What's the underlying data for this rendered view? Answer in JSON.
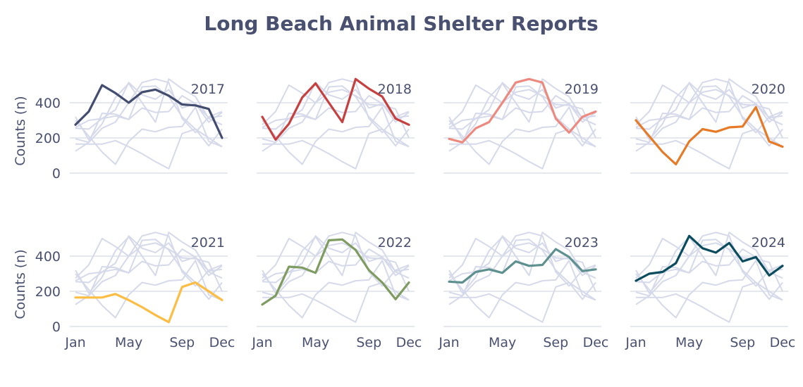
{
  "chart_data": {
    "type": "line",
    "title": "Long Beach Animal Shelter Reports",
    "ylabel": "Counts (n)",
    "xlabel": "",
    "ylim": [
      0,
      560
    ],
    "yticks": [
      0,
      200,
      400
    ],
    "x": [
      "Jan",
      "Feb",
      "Mar",
      "Apr",
      "May",
      "Jun",
      "Jul",
      "Aug",
      "Sep",
      "Oct",
      "Nov",
      "Dec"
    ],
    "xtick_labels": [
      "Jan",
      "May",
      "Sep",
      "Dec"
    ],
    "xtick_index": [
      0,
      4,
      8,
      11
    ],
    "background_color": "#d5d9ea",
    "grid": true,
    "legend": "none",
    "layout": {
      "rows": 2,
      "cols": 4
    },
    "series": [
      {
        "name": "2017",
        "color": "#434d70",
        "values": [
          275,
          350,
          500,
          455,
          400,
          460,
          475,
          440,
          390,
          385,
          365,
          200
        ]
      },
      {
        "name": "2018",
        "color": "#c64040",
        "values": [
          320,
          190,
          280,
          430,
          510,
          400,
          290,
          535,
          480,
          435,
          310,
          275
        ]
      },
      {
        "name": "2019",
        "color": "#ec8a80",
        "values": [
          195,
          175,
          255,
          290,
          400,
          515,
          535,
          515,
          310,
          230,
          320,
          350
        ]
      },
      {
        "name": "2020",
        "color": "#e67a26",
        "values": [
          300,
          210,
          120,
          50,
          180,
          250,
          235,
          260,
          265,
          375,
          180,
          150
        ]
      },
      {
        "name": "2021",
        "color": "#fdbd45",
        "values": [
          165,
          165,
          165,
          185,
          150,
          110,
          65,
          25,
          225,
          250,
          200,
          150
        ]
      },
      {
        "name": "2022",
        "color": "#7f9c60",
        "values": [
          125,
          175,
          340,
          335,
          305,
          490,
          495,
          435,
          320,
          250,
          155,
          250
        ]
      },
      {
        "name": "2023",
        "color": "#5e9090",
        "values": [
          255,
          250,
          310,
          325,
          305,
          370,
          345,
          350,
          440,
          395,
          315,
          325
        ]
      },
      {
        "name": "2024",
        "color": "#0a4c5e",
        "values": [
          260,
          300,
          310,
          360,
          515,
          445,
          420,
          475,
          370,
          395,
          290,
          345
        ]
      }
    ]
  }
}
